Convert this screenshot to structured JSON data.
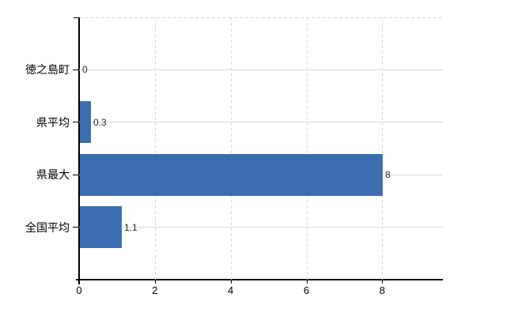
{
  "chart_data": {
    "type": "bar",
    "orientation": "horizontal",
    "title": "",
    "xlabel": "",
    "ylabel": "",
    "categories": [
      "徳之島町",
      "県平均",
      "県最大",
      "全国平均"
    ],
    "values": [
      0,
      0.3,
      8,
      1.1
    ],
    "value_labels": [
      "0",
      "0.3",
      "8",
      "1.1"
    ],
    "xlim": [
      0,
      9.6
    ],
    "xtick_values": [
      0,
      2,
      4,
      6,
      8
    ],
    "xtick_labels": [
      "0",
      "2",
      "4",
      "6",
      "8"
    ],
    "grid": "on",
    "legend": "none",
    "bar_color": "#3b6eb0"
  },
  "colors": {
    "background": "#ffffff",
    "axis": "#000000",
    "h_gridline": "#d3dbd3",
    "v_gridline": "#dadada",
    "category_text": "#000000",
    "value_text": "#2a2a2a"
  }
}
